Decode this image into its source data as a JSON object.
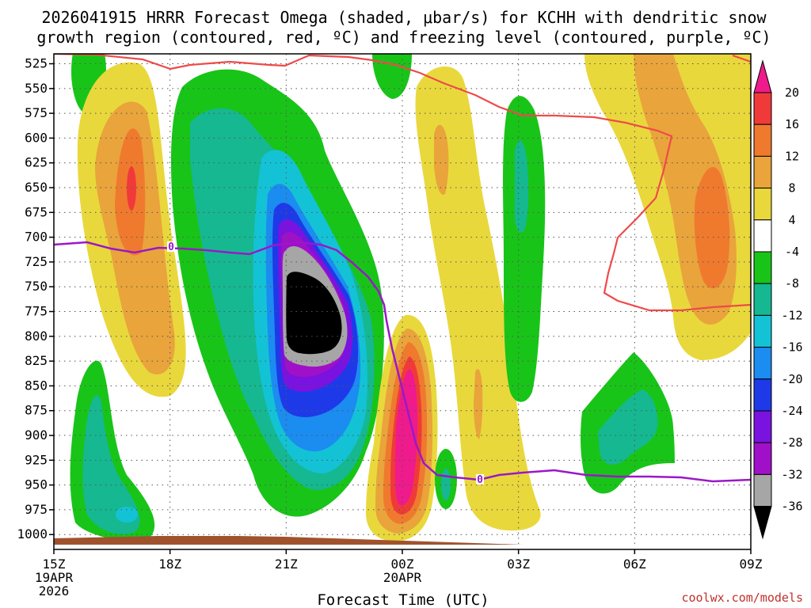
{
  "chart_data": {
    "type": "heatmap",
    "title_line1": "2026041915 HRRR Forecast Omega (shaded, μbar/s) for KCHH with dendritic snow",
    "title_line2": "growth region (contoured, red, ºC) and freezing level (contoured, purple, ºC)",
    "xlabel": "Forecast Time (UTC)",
    "x_ticks": [
      {
        "hour": 0,
        "label": "15Z",
        "sub1": "19APR",
        "sub2": "2026"
      },
      {
        "hour": 3,
        "label": "18Z",
        "sub1": "",
        "sub2": ""
      },
      {
        "hour": 6,
        "label": "21Z",
        "sub1": "",
        "sub2": ""
      },
      {
        "hour": 9,
        "label": "00Z",
        "sub1": "20APR",
        "sub2": ""
      },
      {
        "hour": 12,
        "label": "03Z",
        "sub1": "",
        "sub2": ""
      },
      {
        "hour": 15,
        "label": "06Z",
        "sub1": "",
        "sub2": ""
      },
      {
        "hour": 18,
        "label": "09Z",
        "sub1": "",
        "sub2": ""
      }
    ],
    "x_range_hours": [
      0,
      18
    ],
    "y_levels_hpa": [
      525,
      550,
      575,
      600,
      625,
      650,
      675,
      700,
      725,
      750,
      775,
      800,
      825,
      850,
      875,
      900,
      925,
      950,
      975,
      1000
    ],
    "y_range_hpa": [
      515,
      1015
    ],
    "colorbar": {
      "labels": [
        "20",
        "16",
        "12",
        "8",
        "4",
        "-4",
        "-8",
        "-12",
        "-16",
        "-20",
        "-24",
        "-28",
        "-32",
        "-36"
      ],
      "bins": [
        {
          "range": "20+",
          "color": "#ef1a8c"
        },
        {
          "range": "16-20",
          "color": "#f03a3a"
        },
        {
          "range": "12-16",
          "color": "#ef7a2e"
        },
        {
          "range": "8-12",
          "color": "#e9a43c"
        },
        {
          "range": "4-8",
          "color": "#e9d83c"
        },
        {
          "range": "-4-4",
          "color": "#ffffff"
        },
        {
          "range": "-8--4",
          "color": "#19c419"
        },
        {
          "range": "-12--8",
          "color": "#15b891"
        },
        {
          "range": "-16--12",
          "color": "#14c2d6"
        },
        {
          "range": "-20--16",
          "color": "#1b8cf0"
        },
        {
          "range": "-24--20",
          "color": "#1e3ae8"
        },
        {
          "range": "-28--24",
          "color": "#7a12e0"
        },
        {
          "range": "-32--28",
          "color": "#a010c8"
        },
        {
          "range": "-36--32",
          "color": "#a6a6a6"
        },
        {
          "range": "<-36",
          "color": "#000000"
        }
      ]
    },
    "freezing_level_label": "0",
    "freezing_level_color": "#9a18c8",
    "dgz_color": "#ef4a4a",
    "ground_color": "#a0522d",
    "watermark": "coolwx.com/models"
  }
}
